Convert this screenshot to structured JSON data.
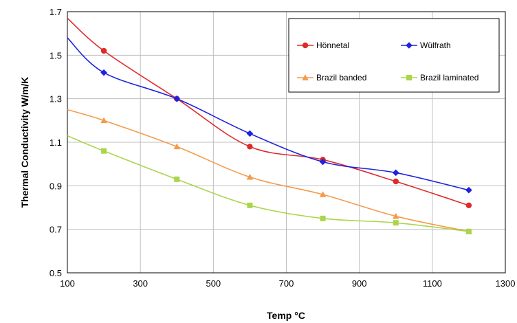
{
  "chart_data": {
    "type": "line",
    "xlabel": "Temp °C",
    "ylabel": "Thermal Conductivity  W/m/K",
    "xlim": [
      100,
      1300
    ],
    "ylim": [
      0.5,
      1.7
    ],
    "xticks": [
      100,
      300,
      500,
      700,
      900,
      1100,
      1300
    ],
    "yticks": [
      0.5,
      0.7,
      0.9,
      1.1,
      1.3,
      1.5,
      1.7
    ],
    "grid": true,
    "legend_position": "top-right",
    "series": [
      {
        "name": "Hönnetal",
        "color": "#e02a2a",
        "marker": "circle",
        "x": [
          100,
          200,
          400,
          600,
          800,
          1000,
          1200
        ],
        "y": [
          1.67,
          1.52,
          1.3,
          1.08,
          1.02,
          0.92,
          0.81
        ]
      },
      {
        "name": "Wülfrath",
        "color": "#1f22e0",
        "marker": "diamond",
        "x": [
          100,
          200,
          400,
          600,
          800,
          1000,
          1200
        ],
        "y": [
          1.58,
          1.42,
          1.3,
          1.14,
          1.01,
          0.96,
          0.88
        ]
      },
      {
        "name": "Brazil banded",
        "color": "#f59a4a",
        "marker": "triangle",
        "x": [
          100,
          200,
          400,
          600,
          800,
          1000,
          1200
        ],
        "y": [
          1.25,
          1.2,
          1.08,
          0.94,
          0.86,
          0.76,
          0.69
        ]
      },
      {
        "name": "Brazil laminated",
        "color": "#a9d64a",
        "marker": "square",
        "x": [
          100,
          200,
          400,
          600,
          800,
          1000,
          1200
        ],
        "y": [
          1.13,
          1.06,
          0.93,
          0.81,
          0.75,
          0.73,
          0.69
        ]
      }
    ]
  }
}
